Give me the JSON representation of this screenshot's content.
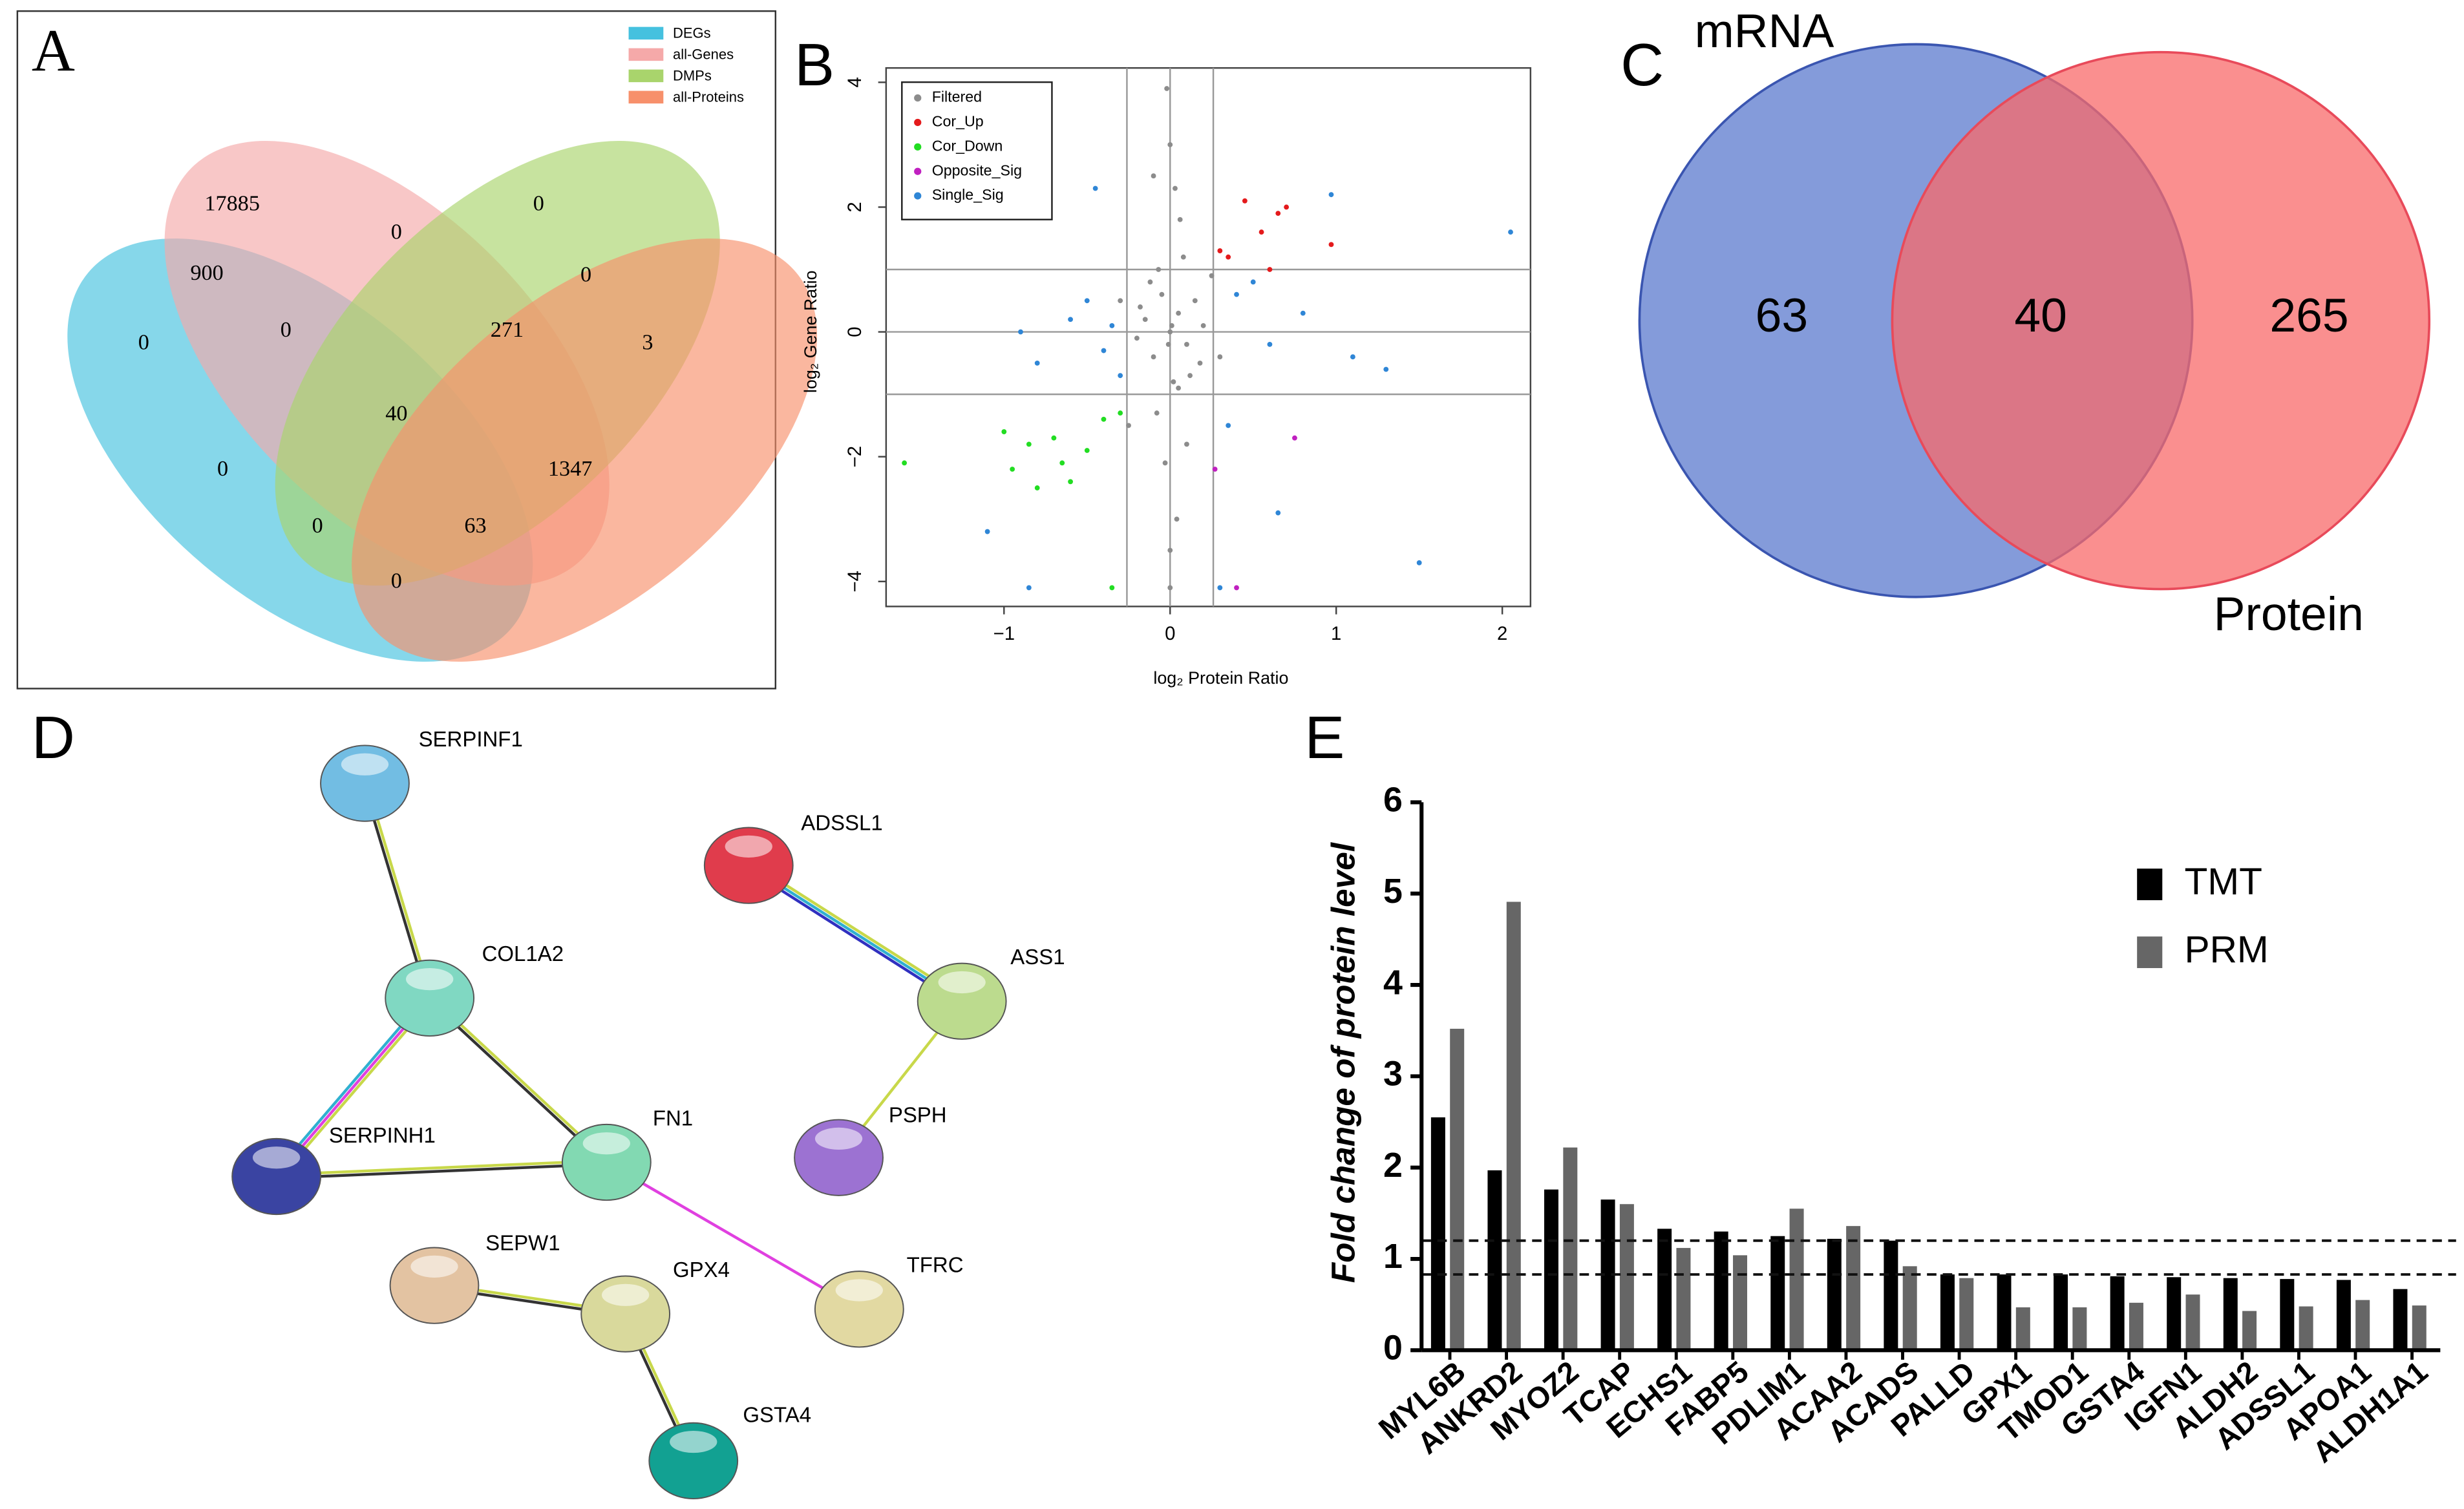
{
  "chart_data": [
    {
      "type": "venn4",
      "panel": "A",
      "sets": [
        {
          "name": "DEGs",
          "color": "#45c1df"
        },
        {
          "name": "all-Genes",
          "color": "#f5a9a9"
        },
        {
          "name": "DMPs",
          "color": "#a9d46c"
        },
        {
          "name": "all-Proteins",
          "color": "#f7906b"
        }
      ],
      "regions": [
        17885,
        0,
        0,
        0,
        900,
        0,
        0,
        271,
        3,
        40,
        0,
        1347,
        0,
        63,
        0
      ]
    },
    {
      "type": "scatter",
      "panel": "B",
      "xlabel": "log₂ Protein Ratio",
      "ylabel": "log₂ Gene Ratio",
      "xlim": [
        -1.71,
        2.17
      ],
      "ylim": [
        -4.4,
        4.23
      ],
      "xticks": [
        {
          "value": -1,
          "label": "−1"
        },
        0,
        1,
        2
      ],
      "yticks": [
        {
          "value": -4,
          "label": "−4"
        },
        {
          "value": -2,
          "label": "−2"
        },
        0,
        2,
        4
      ],
      "vlines": [
        -0.26,
        0,
        0.26
      ],
      "hlines": [
        -1,
        0,
        1
      ],
      "series": [
        {
          "name": "Filtered",
          "color": "#8c8c8c",
          "x": [
            0,
            0.05,
            -0.1,
            0.1,
            -0.05,
            0.15,
            -0.15,
            0.02,
            -0.2,
            0.2,
            0.08,
            -0.08,
            0.12,
            -0.12,
            0.03,
            -0.03,
            0.18,
            -0.18,
            0.06,
            -0.25,
            0.25,
            0,
            -0.02,
            0.04,
            -0.3,
            0.3,
            0.1,
            -0.1,
            0,
            0,
            0.05,
            -0.07,
            0.01,
            -0.01
          ],
          "values": [
            0,
            0.3,
            -0.4,
            -0.2,
            0.6,
            0.5,
            0.2,
            -0.8,
            -0.1,
            0.1,
            1.2,
            -1.3,
            -0.7,
            0.8,
            2.3,
            -2.1,
            -0.5,
            0.4,
            1.8,
            -1.5,
            0.9,
            -4.1,
            3.9,
            -3,
            0.5,
            -0.4,
            -1.8,
            2.5,
            3,
            -3.5,
            -0.9,
            1,
            0.1,
            -0.2
          ]
        },
        {
          "name": "Cor_Up",
          "color": "#e41a1c",
          "x": [
            0.35,
            0.45,
            0.55,
            0.6,
            0.65,
            0.7,
            0.97,
            0.3
          ],
          "values": [
            1.2,
            2.1,
            1.6,
            1,
            1.9,
            2,
            1.4,
            1.3
          ]
        },
        {
          "name": "Cor_Down",
          "color": "#22dd22",
          "x": [
            -1.6,
            -1,
            -0.95,
            -0.8,
            -0.7,
            -0.6,
            -0.5,
            -0.4,
            -0.3,
            -0.85,
            -0.65,
            -0.35
          ],
          "values": [
            -2.1,
            -1.6,
            -2.2,
            -2.5,
            -1.7,
            -2.4,
            -1.9,
            -1.4,
            -1.3,
            -1.8,
            -2.1,
            -4.1
          ]
        },
        {
          "name": "Opposite_Sig",
          "color": "#c020c0",
          "x": [
            0.75,
            0.27,
            0.4
          ],
          "values": [
            -1.7,
            -2.2,
            -4.1
          ]
        },
        {
          "name": "Single_Sig",
          "color": "#2f86d6",
          "x": [
            -0.5,
            -0.4,
            -0.6,
            -0.8,
            -0.9,
            0.4,
            0.6,
            0.8,
            1.1,
            1.3,
            0.97,
            -0.45,
            -1.1,
            0.65,
            1.5,
            -0.85,
            0.3,
            -0.35,
            0.5,
            2.05,
            -0.3,
            0.35
          ],
          "values": [
            0.5,
            -0.3,
            0.2,
            -0.5,
            0,
            0.6,
            -0.2,
            0.3,
            -0.4,
            -0.6,
            2.2,
            2.3,
            -3.2,
            -2.9,
            -3.7,
            -4.1,
            -4.1,
            0.1,
            0.8,
            1.6,
            -0.7,
            -1.5
          ]
        }
      ]
    },
    {
      "type": "venn2",
      "panel": "C",
      "sets": [
        {
          "name": "mRNA",
          "color": "#6f89d4"
        },
        {
          "name": "Protein",
          "color": "#f86a6a"
        }
      ],
      "values": [
        63,
        40,
        265
      ]
    },
    {
      "type": "network",
      "panel": "D",
      "nodes": [
        {
          "label": "SERPINF1",
          "color": "#72bde3"
        },
        {
          "label": "COL1A2",
          "color": "#80d8c2"
        },
        {
          "label": "ADSSL1",
          "color": "#e03c4c"
        },
        {
          "label": "ASS1",
          "color": "#bcdb8e"
        },
        {
          "label": "SERPINH1",
          "color": "#3a44a2"
        },
        {
          "label": "FN1",
          "color": "#82d9b2"
        },
        {
          "label": "PSPH",
          "color": "#9c72d2"
        },
        {
          "label": "SEPW1",
          "color": "#e3c3a2"
        },
        {
          "label": "GPX4",
          "color": "#d9d99c"
        },
        {
          "label": "TFRC",
          "color": "#e2d9a2"
        },
        {
          "label": "GSTA4",
          "color": "#12a192"
        }
      ],
      "edges": [
        [
          0,
          1
        ],
        [
          1,
          4
        ],
        [
          1,
          5
        ],
        [
          4,
          5
        ],
        [
          5,
          9
        ],
        [
          2,
          3
        ],
        [
          3,
          6
        ],
        [
          7,
          8
        ],
        [
          8,
          10
        ]
      ]
    },
    {
      "type": "bar",
      "panel": "E",
      "ylabel": "Fold change of protein level",
      "categories": [
        "MYL6B",
        "ANKRD2",
        "MYOZ2",
        "TCAP",
        "ECHS1",
        "FABP5",
        "PDLIM1",
        "ACAA2",
        "ACADS",
        "PALLD",
        "GPX1",
        "TMOD1",
        "GSTA4",
        "IGFN1",
        "ALDH2",
        "ADSSL1",
        "APOA1",
        "ALDH1A1"
      ],
      "series": [
        {
          "name": "TMT",
          "color": "#000000",
          "values": [
            2.55,
            1.97,
            1.76,
            1.65,
            1.33,
            1.3,
            1.25,
            1.22,
            1.2,
            0.83,
            0.83,
            0.83,
            0.81,
            0.8,
            0.79,
            0.78,
            0.77,
            0.67
          ]
        },
        {
          "name": "PRM",
          "color": "#666666",
          "values": [
            3.52,
            4.91,
            2.22,
            1.6,
            1.12,
            1.04,
            1.55,
            1.36,
            0.92,
            0.79,
            0.47,
            0.47,
            0.52,
            0.61,
            0.43,
            0.48,
            0.55,
            0.49
          ]
        }
      ],
      "ylim": [
        0,
        6
      ],
      "yticks": [
        0,
        1,
        2,
        3,
        4,
        5,
        6
      ],
      "hlines": [
        1.2,
        0.83
      ]
    }
  ]
}
